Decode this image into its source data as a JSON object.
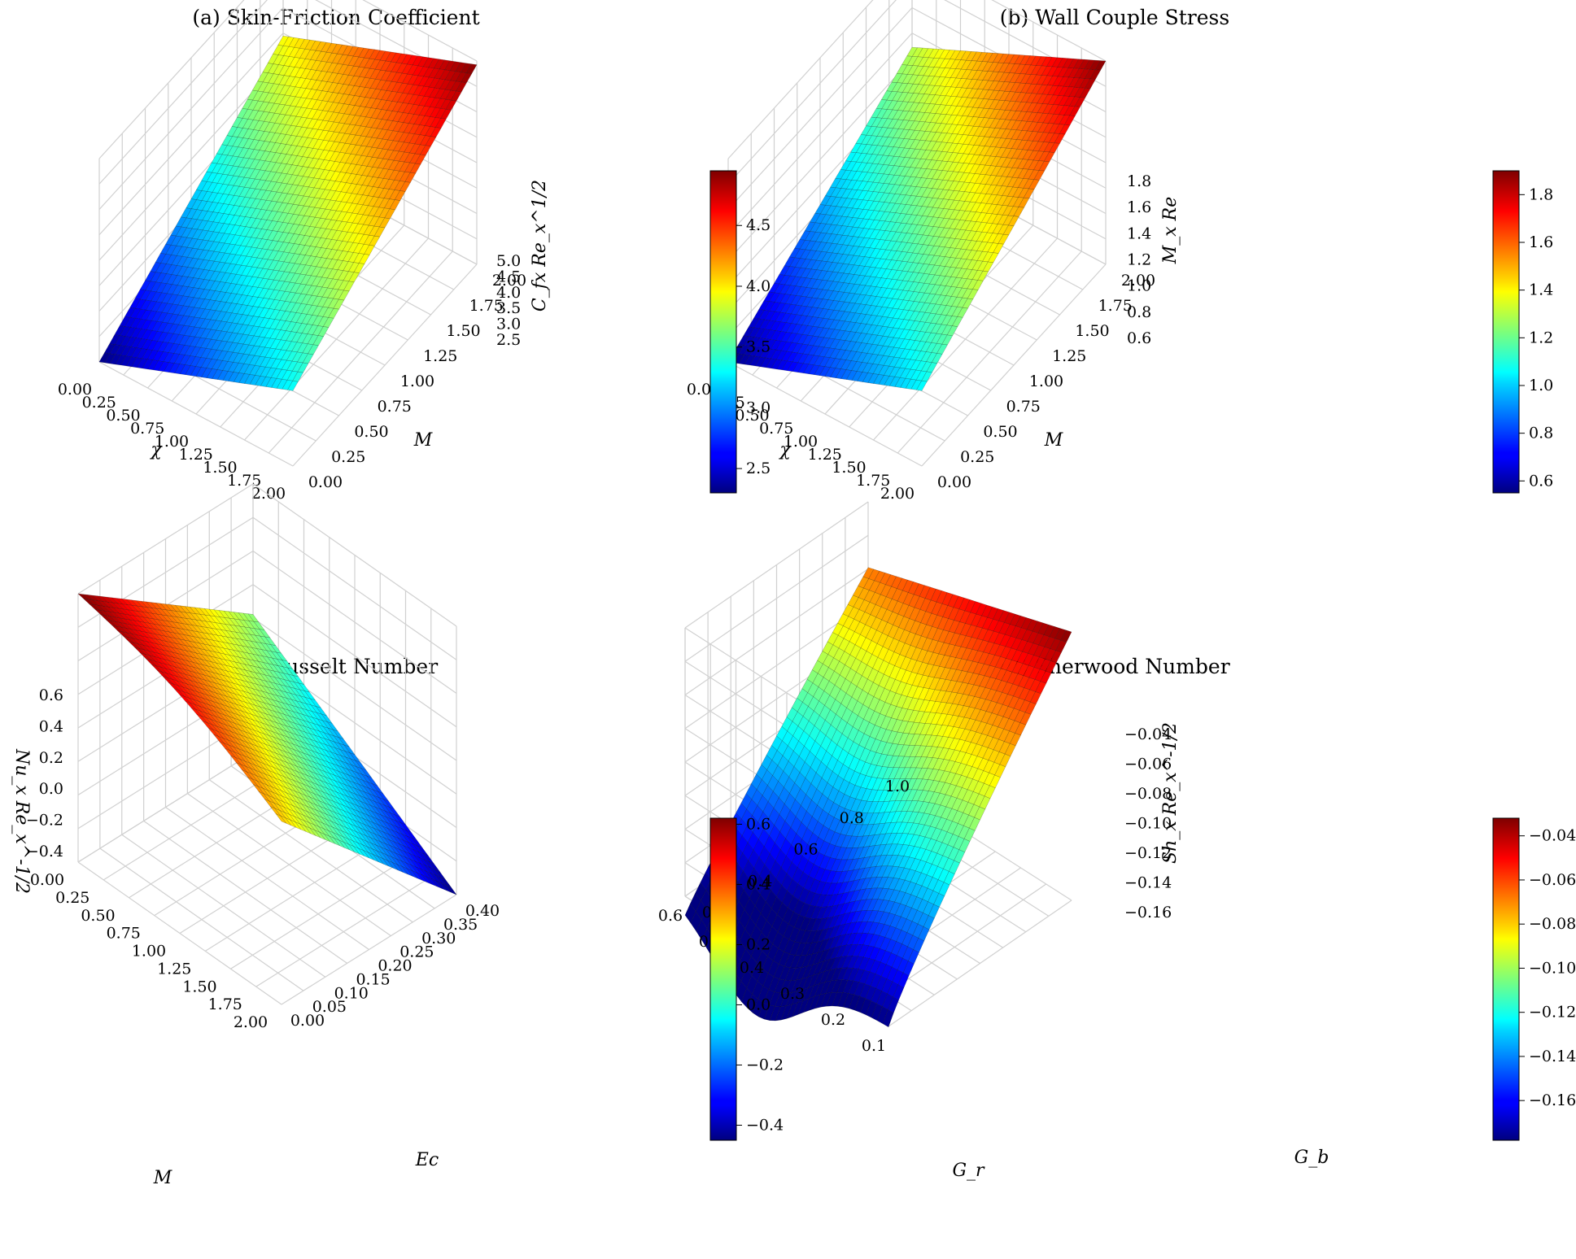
{
  "colormap": "jet",
  "chart_data": [
    {
      "type": "surface",
      "title": "(a) Skin-Friction Coefficient",
      "xlabel": "χ",
      "ylabel": "M",
      "zlabel": "C_fx Re_x^1/2",
      "x_ticks": [
        "0.00",
        "0.25",
        "0.50",
        "0.75",
        "1.00",
        "1.25",
        "1.50",
        "1.75",
        "2.00"
      ],
      "y_ticks": [
        "0.00",
        "0.25",
        "0.50",
        "0.75",
        "1.00",
        "1.25",
        "1.50",
        "1.75",
        "2.00"
      ],
      "z_ticks": [
        "2.5",
        "3.0",
        "3.5",
        "4.0",
        "4.5",
        "5.0"
      ],
      "colorbar_ticks": [
        "2.5",
        "3.0",
        "3.5",
        "4.0",
        "4.5"
      ],
      "x_range": [
        0,
        2
      ],
      "y_range": [
        0,
        2
      ],
      "z_range": [
        2.3,
        5.0
      ],
      "colorbar_range": [
        2.3,
        4.95
      ],
      "corner_values": {
        "x0_y0": 2.3,
        "x2_y0": 3.3,
        "x0_y2": 3.95,
        "x2_y2": 4.95
      },
      "grid": true
    },
    {
      "type": "surface",
      "title": "(b) Wall Couple Stress",
      "xlabel": "χ",
      "ylabel": "M",
      "zlabel": "M_x Re",
      "x_ticks": [
        "0.00",
        "0.25",
        "0.50",
        "0.75",
        "1.00",
        "1.25",
        "1.50",
        "1.75",
        "2.00"
      ],
      "y_ticks": [
        "0.00",
        "0.25",
        "0.50",
        "0.75",
        "1.00",
        "1.25",
        "1.50",
        "1.75",
        "2.00"
      ],
      "z_ticks": [
        "0.6",
        "0.8",
        "1.0",
        "1.2",
        "1.4",
        "1.6",
        "1.8"
      ],
      "colorbar_ticks": [
        "0.6",
        "0.8",
        "1.0",
        "1.2",
        "1.4",
        "1.6",
        "1.8"
      ],
      "x_range": [
        0,
        2
      ],
      "y_range": [
        0,
        2
      ],
      "z_range": [
        0.55,
        1.9
      ],
      "colorbar_range": [
        0.55,
        1.9
      ],
      "corner_values": {
        "x0_y0": 0.55,
        "x2_y0": 1.05,
        "x0_y2": 1.3,
        "x2_y2": 1.9
      },
      "grid": true
    },
    {
      "type": "surface",
      "title": "(c) Nusselt Number",
      "xlabel": "M",
      "ylabel": "Ec",
      "zlabel": "Nu_x Re_x^-1/2",
      "x_ticks": [
        "0.00",
        "0.25",
        "0.50",
        "0.75",
        "1.00",
        "1.25",
        "1.50",
        "1.75",
        "2.00"
      ],
      "y_ticks": [
        "0.00",
        "0.05",
        "0.10",
        "0.15",
        "0.20",
        "0.25",
        "0.30",
        "0.35",
        "0.40"
      ],
      "z_ticks": [
        "−0.4",
        "−0.2",
        "0.0",
        "0.2",
        "0.4",
        "0.6"
      ],
      "colorbar_ticks": [
        "−0.4",
        "−0.2",
        "0.0",
        "0.2",
        "0.4",
        "0.6"
      ],
      "x_range": [
        0,
        2
      ],
      "y_range": [
        0,
        0.4
      ],
      "z_range": [
        -0.45,
        0.62
      ],
      "colorbar_range": [
        -0.45,
        0.62
      ],
      "corner_values": {
        "x0_y0": 0.62,
        "x2_y0": 0.28,
        "x0_y4": 0.1,
        "x2_y4": -0.45
      },
      "grid": true
    },
    {
      "type": "surface",
      "title": "(d) Sherwood Number",
      "xlabel": "G_r",
      "ylabel": "G_b",
      "zlabel": "Sh_x Re_x^-1/2",
      "x_ticks": [
        "0.1",
        "0.2",
        "0.3",
        "0.4",
        "0.5",
        "0.6"
      ],
      "y_ticks": [
        "0.2",
        "0.4",
        "0.6",
        "0.8",
        "1.0"
      ],
      "z_ticks": [
        "−0.16",
        "−0.14",
        "−0.12",
        "−0.10",
        "−0.08",
        "−0.06",
        "−0.04"
      ],
      "colorbar_ticks": [
        "−0.16",
        "−0.14",
        "−0.12",
        "−0.10",
        "−0.08",
        "−0.06",
        "−0.04"
      ],
      "x_range": [
        0.1,
        0.6
      ],
      "y_range": [
        0.1,
        1.1
      ],
      "z_range": [
        -0.178,
        -0.032
      ],
      "colorbar_range": [
        -0.178,
        -0.032
      ],
      "corner_values": {
        "x0_y0": -0.125,
        "x1_y0": -0.178,
        "x0_y1": -0.032,
        "x1_y1": -0.1
      },
      "grid": true
    }
  ]
}
